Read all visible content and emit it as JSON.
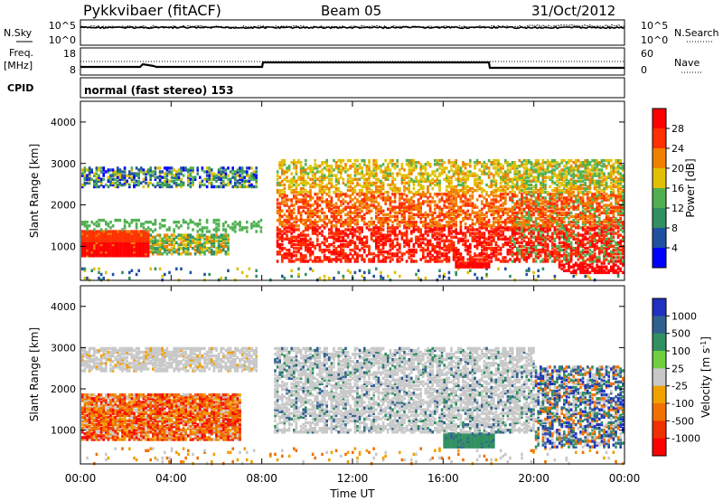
{
  "header": {
    "station": "Pykkvibaer (fitACF)",
    "beam": "Beam 05",
    "date": "31/Oct/2012"
  },
  "nsky_panel": {
    "left_label": "N.Sky",
    "left_ticks": [
      "10^5",
      "10^0"
    ],
    "right_ticks": [
      "10^5",
      "10^0"
    ],
    "right_label": "N.Search"
  },
  "freq_panel": {
    "left_label_1": "Freq.",
    "left_label_2": "[MHz]",
    "left_ticks": [
      "18",
      "8"
    ],
    "right_ticks": [
      "60",
      "0"
    ],
    "right_label": "Nave"
  },
  "cpid_panel": {
    "label": "CPID",
    "text": "normal (fast stereo) 153"
  },
  "colors": {
    "blue": "#1010e0",
    "navy": "#2040a0",
    "green": "#30a060",
    "lime": "#60c030",
    "yellow": "#d8d000",
    "orange": "#f07800",
    "red": "#e81010",
    "gray": "#c0c0c0"
  },
  "chart_data": [
    {
      "type": "heatmap",
      "title": "Power",
      "xlabel": "",
      "ylabel": "Slant Range [km]",
      "xlim": [
        "00:00",
        "24:00"
      ],
      "ylim": [
        180,
        4500
      ],
      "yticks": [
        "1000",
        "2000",
        "3000",
        "4000"
      ],
      "colorbar_label": "Power [dB]",
      "colorbar_ticks": [
        "4",
        "8",
        "12",
        "16",
        "20",
        "24",
        "28"
      ],
      "colorbar_colors": [
        "#0000ff",
        "#2050a0",
        "#309060",
        "#50b050",
        "#e0c000",
        "#f08000",
        "#ff3000",
        "#ff0000"
      ],
      "regions": [
        {
          "x": [
            0,
            7.8
          ],
          "y": [
            2500,
            2900
          ],
          "level": "mixed"
        },
        {
          "x": [
            0,
            2.5
          ],
          "y": [
            800,
            1350
          ],
          "level": "high"
        },
        {
          "x": [
            2.5,
            6.0
          ],
          "y": [
            900,
            1300
          ],
          "level": "medium"
        },
        {
          "x": [
            8.5,
            24.0
          ],
          "y": [
            700,
            3100
          ],
          "level": "high"
        },
        {
          "x": [
            16.5,
            18.0
          ],
          "y": [
            500,
            900
          ],
          "level": "high"
        },
        {
          "x": [
            21.0,
            24.0
          ],
          "y": [
            400,
            1200
          ],
          "level": "high"
        }
      ]
    },
    {
      "type": "heatmap",
      "title": "Velocity",
      "xlabel": "Time UT",
      "ylabel": "Slant Range [km]",
      "xlim": [
        "00:00",
        "24:00"
      ],
      "xticks": [
        "00:00",
        "04:00",
        "08:00",
        "12:00",
        "16:00",
        "20:00",
        "00:00"
      ],
      "ylim": [
        180,
        4500
      ],
      "yticks": [
        "1000",
        "2000",
        "3000",
        "4000"
      ],
      "colorbar_label": "Velocity [m s^-1]",
      "colorbar_ticks": [
        "1000",
        "500",
        "100",
        "25",
        "-25",
        "-100",
        "-500",
        "-1000"
      ],
      "colorbar_colors": [
        "#2030c0",
        "#306090",
        "#309060",
        "#70d040",
        "#c8c8c8",
        "#f0a000",
        "#f07000",
        "#f03000",
        "#ff0000"
      ],
      "regions": [
        {
          "x": [
            0,
            7.8
          ],
          "y": [
            2500,
            3000
          ],
          "level": "near zero"
        },
        {
          "x": [
            0,
            7.0
          ],
          "y": [
            800,
            1800
          ],
          "level": "negative"
        },
        {
          "x": [
            8.5,
            20.0
          ],
          "y": [
            1000,
            3000
          ],
          "level": "near zero"
        },
        {
          "x": [
            16.0,
            18.0
          ],
          "y": [
            600,
            1100
          ],
          "level": "positive"
        },
        {
          "x": [
            21.0,
            24.0
          ],
          "y": [
            600,
            1200
          ],
          "level": "positive"
        }
      ]
    }
  ]
}
